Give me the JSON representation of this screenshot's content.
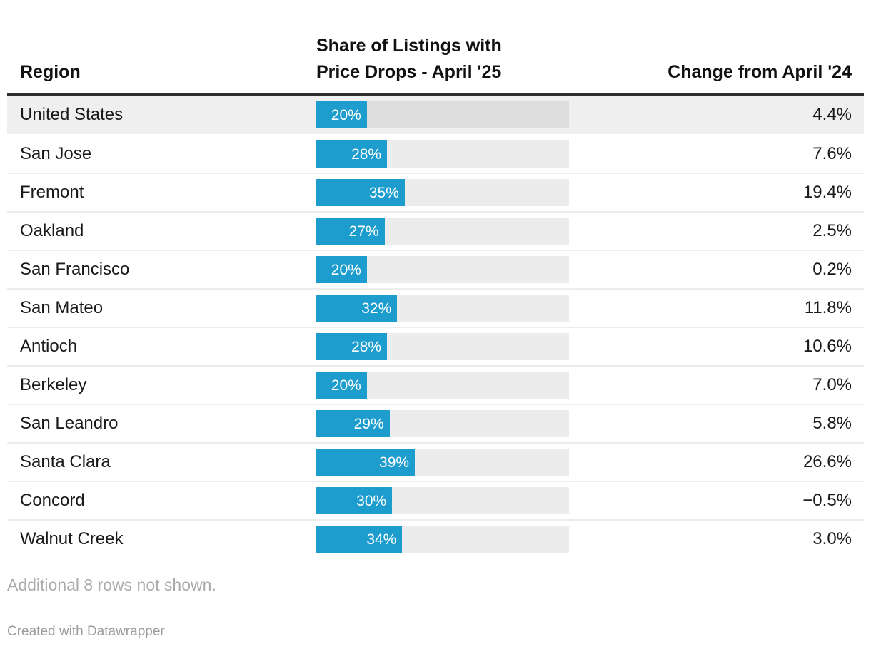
{
  "header": {
    "region_label": "Region",
    "share_label": "Share of Listings with\nPrice Drops - April '25",
    "change_label": "Change from April '24"
  },
  "table": {
    "rows": [
      {
        "region": "United States",
        "share_pct": 20,
        "share_label": "20%",
        "change": "4.4%",
        "highlight": true
      },
      {
        "region": "San Jose",
        "share_pct": 28,
        "share_label": "28%",
        "change": "7.6%",
        "highlight": false
      },
      {
        "region": "Fremont",
        "share_pct": 35,
        "share_label": "35%",
        "change": "19.4%",
        "highlight": false
      },
      {
        "region": "Oakland",
        "share_pct": 27,
        "share_label": "27%",
        "change": "2.5%",
        "highlight": false
      },
      {
        "region": "San Francisco",
        "share_pct": 20,
        "share_label": "20%",
        "change": "0.2%",
        "highlight": false
      },
      {
        "region": "San Mateo",
        "share_pct": 32,
        "share_label": "32%",
        "change": "11.8%",
        "highlight": false
      },
      {
        "region": "Antioch",
        "share_pct": 28,
        "share_label": "28%",
        "change": "10.6%",
        "highlight": false
      },
      {
        "region": "Berkeley",
        "share_pct": 20,
        "share_label": "20%",
        "change": "7.0%",
        "highlight": false
      },
      {
        "region": "San Leandro",
        "share_pct": 29,
        "share_label": "29%",
        "change": "5.8%",
        "highlight": false
      },
      {
        "region": "Santa Clara",
        "share_pct": 39,
        "share_label": "39%",
        "change": "26.6%",
        "highlight": false
      },
      {
        "region": "Concord",
        "share_pct": 30,
        "share_label": "30%",
        "change": "−0.5%",
        "highlight": false
      },
      {
        "region": "Walnut Creek",
        "share_pct": 34,
        "share_label": "34%",
        "change": "3.0%",
        "highlight": false
      }
    ]
  },
  "chart_data": {
    "type": "table",
    "title": "",
    "columns": [
      "Region",
      "Share of Listings with Price Drops - April '25",
      "Change from April '24"
    ],
    "rows": [
      [
        "United States",
        20,
        4.4
      ],
      [
        "San Jose",
        28,
        7.6
      ],
      [
        "Fremont",
        35,
        19.4
      ],
      [
        "Oakland",
        27,
        2.5
      ],
      [
        "San Francisco",
        20,
        0.2
      ],
      [
        "San Mateo",
        32,
        11.8
      ],
      [
        "Antioch",
        28,
        10.6
      ],
      [
        "Berkeley",
        20,
        7.0
      ],
      [
        "San Leandro",
        29,
        5.8
      ],
      [
        "Santa Clara",
        39,
        26.6
      ],
      [
        "Concord",
        30,
        -0.5
      ],
      [
        "Walnut Creek",
        34,
        3.0
      ]
    ],
    "embedded_bar": {
      "type": "bar",
      "column": "Share of Listings with Price Drops - April '25",
      "axis_range": [
        0,
        100
      ],
      "value_suffix": "%",
      "highlighted_row": "United States"
    }
  },
  "footer": {
    "note": "Additional 8 rows not shown.",
    "attribution": "Created with Datawrapper"
  },
  "colors": {
    "bar": "#1d9cce",
    "bar_track": "#ececec",
    "bar_track_highlight": "#dedede",
    "highlight_row_bg": "#efefef",
    "header_rule": "#2e2e2e",
    "row_divider": "#ededed",
    "text": "#1a1a1a",
    "note_text": "#ababab"
  }
}
